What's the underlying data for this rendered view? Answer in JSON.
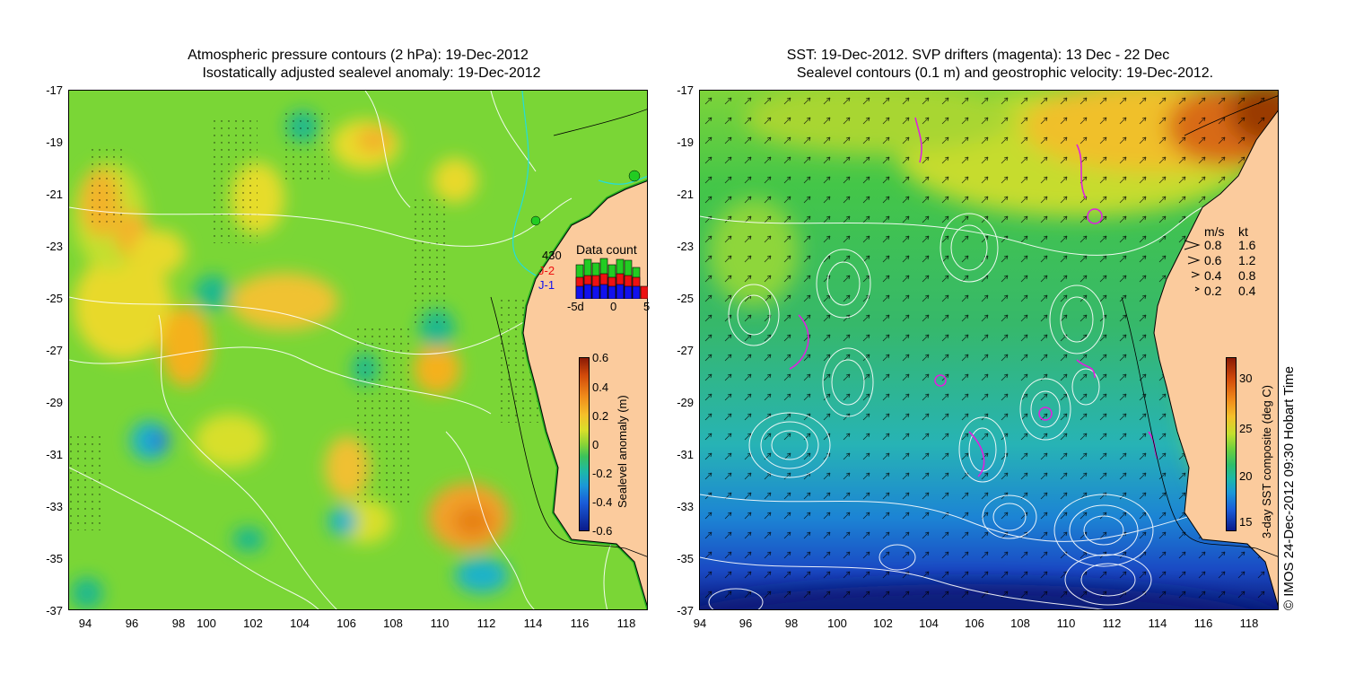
{
  "left_panel": {
    "title_line1": "Atmospheric pressure contours (2 hPa): 19-Dec-2012",
    "title_line2": "Isostatically adjusted sealevel anomaly: 19-Dec-2012",
    "y_ticks": [
      "-17",
      "-19",
      "-21",
      "-23",
      "-25",
      "-27",
      "-29",
      "-31",
      "-33",
      "-35",
      "-37"
    ],
    "x_ticks": [
      "94",
      "96",
      "98",
      "100",
      "102",
      "104",
      "106",
      "108",
      "110",
      "112",
      "114",
      "116",
      "118"
    ],
    "colorbar_label": "Sealevel anomaly (m)",
    "colorbar_ticks": [
      "0.6",
      "0.4",
      "0.2",
      "0",
      "-0.2",
      "-0.4",
      "-0.6"
    ],
    "data_count": {
      "title": "Data count",
      "count_value": "430",
      "series_labels": [
        "J-2",
        "J-1"
      ],
      "x_ticks": [
        "-5d",
        "0",
        "5"
      ],
      "colors": {
        "green": "#22cc22",
        "red": "#ee1111",
        "blue": "#1111ee"
      }
    }
  },
  "right_panel": {
    "title_line1": "SST: 19-Dec-2012. SVP drifters (magenta): 13 Dec - 22 Dec",
    "title_line2": "Sealevel contours (0.1 m) and geostrophic velocity: 19-Dec-2012.",
    "y_ticks": [
      "-17",
      "-19",
      "-21",
      "-23",
      "-25",
      "-27",
      "-29",
      "-31",
      "-33",
      "-35",
      "-37"
    ],
    "x_ticks": [
      "94",
      "96",
      "98",
      "100",
      "102",
      "104",
      "106",
      "108",
      "110",
      "112",
      "114",
      "116",
      "118"
    ],
    "colorbar_label": "3-day SST composite (deg C)",
    "colorbar_ticks": [
      "30",
      "25",
      "20",
      "15"
    ],
    "velocity_legend": {
      "header_ms": "m/s",
      "header_kt": "kt",
      "rows": [
        {
          "ms": "0.8",
          "kt": "1.6"
        },
        {
          "ms": "0.6",
          "kt": "1.2"
        },
        {
          "ms": "0.4",
          "kt": "0.8"
        },
        {
          "ms": "0.2",
          "kt": "0.4"
        }
      ]
    }
  },
  "copyright": "© IMOS 24-Dec-2012 09:30 Hobart Time",
  "colors": {
    "land": "#fbcb9d",
    "contour": "#ffffff",
    "coast": "#000000",
    "drifter": "#dd22dd",
    "cyan": "#22dddd"
  }
}
